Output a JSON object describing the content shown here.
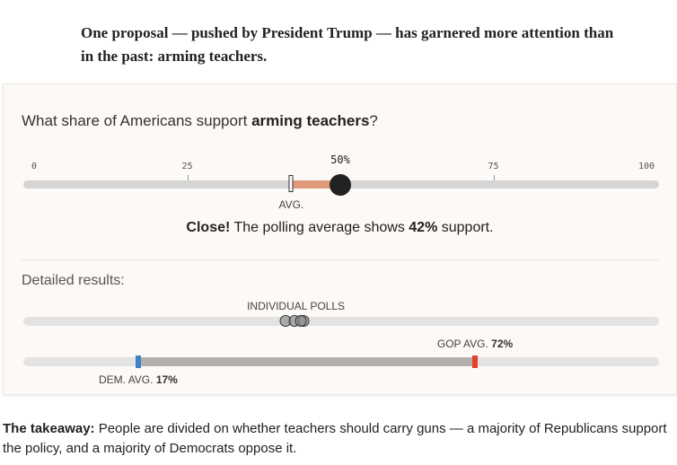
{
  "intro_text": "One proposal — pushed by President Trump — has garnered more attention than in the past: arming teachers.",
  "question": {
    "prefix": "What share of Americans support ",
    "topic": "arming teachers",
    "suffix": "?"
  },
  "scale": {
    "min": 0,
    "max": 100,
    "ticks": [
      {
        "value": 0,
        "label": "0"
      },
      {
        "value": 25,
        "label": "25"
      },
      {
        "value": 75,
        "label": "75"
      },
      {
        "value": 100,
        "label": "100"
      }
    ]
  },
  "guess": {
    "value": 50,
    "label": "50%"
  },
  "average": {
    "value": 42,
    "label": "AVG."
  },
  "result": {
    "verdict": "Close!",
    "text_before": " The polling average shows ",
    "value_text": "42%",
    "text_after": " support."
  },
  "detailed_label": "Detailed results:",
  "individual_polls": {
    "label": "INDIVIDUAL POLLS",
    "values": [
      41,
      42.5,
      44,
      43.5
    ]
  },
  "party": {
    "dem": {
      "label": "DEM. AVG.",
      "value": 17,
      "value_text": "17%",
      "color": "#3f83c6"
    },
    "gop": {
      "label": "GOP AVG.",
      "value": 72,
      "value_text": "72%",
      "color": "#e8412c"
    }
  },
  "colors": {
    "difference": "#e09a7a",
    "range": "#b3afac"
  },
  "takeaway": {
    "heading": "The takeaway:",
    "text": " People are divided on whether teachers should carry guns — a majority of Republicans support the policy, and a majority of Democrats oppose it."
  }
}
